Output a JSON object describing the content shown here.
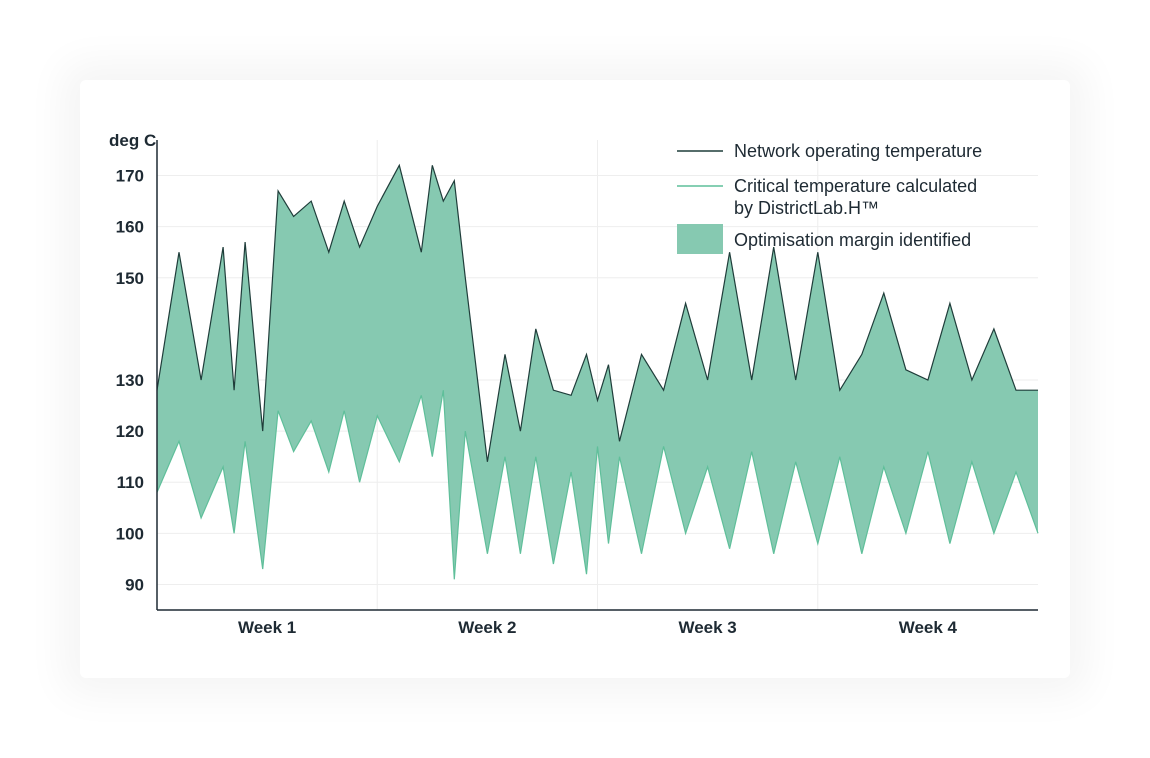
{
  "chart_data": {
    "type": "area",
    "ylabel": "deg C",
    "xlabel": "",
    "ylim": [
      85,
      175
    ],
    "yticks": [
      170,
      160,
      150,
      130,
      120,
      110,
      100,
      90
    ],
    "categories": [
      "Week 1",
      "Week 2",
      "Week 3",
      "Week 4"
    ],
    "grid": true,
    "legend_position": "top-right",
    "colors": {
      "network": "#1f3d3a",
      "critical": "#5fbf9a",
      "margin": "#86c9b1",
      "axis": "#1e2a33",
      "grid": "#eeeeee"
    },
    "legend": [
      {
        "key": "network",
        "label": "Network operating temperature",
        "symbol": "line"
      },
      {
        "key": "critical",
        "label": "Critical temperature calculated",
        "label2": "by DistrictLab.H™",
        "symbol": "line"
      },
      {
        "key": "margin",
        "label": "Optimisation margin identified",
        "symbol": "patch"
      }
    ],
    "x": [
      0,
      0.1,
      0.2,
      0.3,
      0.35,
      0.4,
      0.48,
      0.55,
      0.62,
      0.7,
      0.78,
      0.85,
      0.92,
      1.0,
      1.1,
      1.2,
      1.25,
      1.3,
      1.35,
      1.4,
      1.5,
      1.58,
      1.65,
      1.72,
      1.8,
      1.88,
      1.95,
      2.0,
      2.05,
      2.1,
      2.2,
      2.3,
      2.4,
      2.5,
      2.6,
      2.7,
      2.8,
      2.9,
      3.0,
      3.1,
      3.2,
      3.3,
      3.4,
      3.5,
      3.6,
      3.7,
      3.8,
      3.9,
      4.0
    ],
    "series": [
      {
        "name": "Network operating temperature",
        "values": [
          128,
          155,
          130,
          156,
          128,
          157,
          120,
          167,
          162,
          165,
          155,
          165,
          156,
          164,
          172,
          155,
          172,
          165,
          169,
          150,
          114,
          135,
          120,
          140,
          128,
          127,
          135,
          126,
          133,
          118,
          135,
          128,
          145,
          130,
          155,
          130,
          156,
          130,
          155,
          128,
          135,
          147,
          132,
          130,
          145,
          130,
          140,
          128,
          128
        ]
      },
      {
        "name": "Critical temperature calculated by DistrictLab.H™",
        "values": [
          108,
          118,
          103,
          113,
          100,
          118,
          93,
          124,
          116,
          122,
          112,
          124,
          110,
          123,
          114,
          127,
          115,
          128,
          91,
          120,
          96,
          115,
          96,
          115,
          94,
          112,
          92,
          117,
          98,
          115,
          96,
          117,
          100,
          113,
          97,
          116,
          96,
          114,
          98,
          115,
          96,
          113,
          100,
          116,
          98,
          114,
          100,
          112,
          100
        ]
      }
    ]
  }
}
